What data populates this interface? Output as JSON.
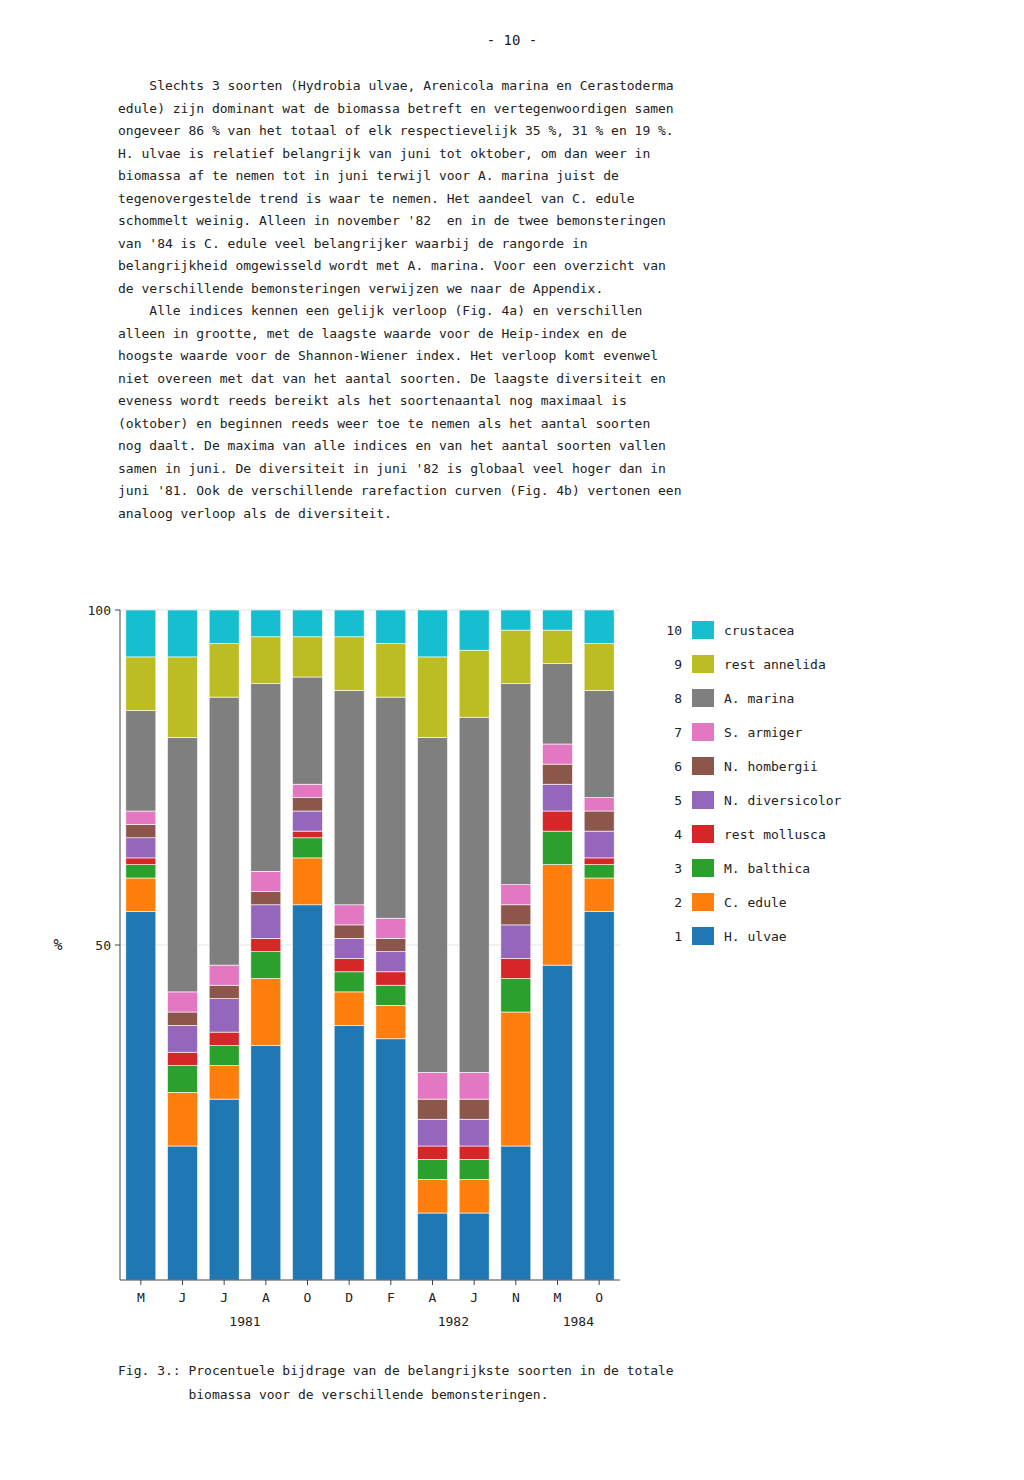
{
  "page_number": "- 10 -",
  "text_lines": [
    "    Slechts 3 soorten (Hydrobia ulvae, Arenicola marina en Cerastoderma",
    "edule) zijn dominant wat de biomassa betreft en vertegenwoordigen samen",
    "ongeveer 86 % van het totaal of elk respectievelijk 35 %, 31 % en 19 %.",
    "H. ulvae is relatief belangrijk van juni tot oktober, om dan weer in",
    "biomassa af te nemen tot in juni terwijl voor A. marina juist de",
    "tegenovergestelde trend is waar te nemen. Het aandeel van C. edule",
    "schommelt weinig. Alleen in november '82  en in de twee bemonsteringen",
    "van '84 is C. edule veel belangrijker waarbij de rangorde in",
    "belangrijkheid omgewisseld wordt met A. marina. Voor een overzicht van",
    "de verschillende bemonsteringen verwijzen we naar de Appendix.",
    "    Alle indices kennen een gelijk verloop (Fig. 4a) en verschillen",
    "alleen in grootte, met de laagste waarde voor de Heip-index en de",
    "hoogste waarde voor de Shannon-Wiener index. Het verloop komt evenwel",
    "niet overeen met dat van het aantal soorten. De laagste diversiteit en",
    "eveness wordt reeds bereikt als het soortenaantal nog maximaal is",
    "(oktober) en beginnen reeds weer toe te nemen als het aantal soorten",
    "nog daalt. De maxima van alle indices en van het aantal soorten vallen",
    "samen in juni. De diversiteit in juni '82 is globaal veel hoger dan in",
    "juni '81. Ook de verschillende rarefaction curven (Fig. 4b) vertonen een",
    "analoog verloop als de diversiteit."
  ],
  "caption": [
    "Fig. 3.: Procentuele bijdrage van de belangrijkste soorten in de totale",
    "         biomassa voor de verschillende bemonsteringen."
  ],
  "chart_data": {
    "type": "bar",
    "stacked": true,
    "legend": "right",
    "ylabel": "%",
    "categories": [
      "M",
      "J",
      "J",
      "A",
      "O",
      "D",
      "F",
      "A",
      "J",
      "N",
      "M",
      "O"
    ],
    "ylim": [
      0,
      100
    ],
    "yticks": [
      50,
      100
    ],
    "annotations": [
      {
        "text": "1981",
        "from": 0,
        "to": 5
      },
      {
        "text": "1982",
        "from": 6,
        "to": 9
      },
      {
        "text": "1984",
        "from": 10,
        "to": 11
      }
    ],
    "series": [
      {
        "name": "H. ulvae",
        "number": 1,
        "values": [
          55,
          20,
          27,
          35,
          56,
          38,
          36,
          10,
          10,
          20,
          47,
          55
        ]
      },
      {
        "name": "C. edule",
        "number": 2,
        "values": [
          5,
          8,
          5,
          10,
          7,
          5,
          5,
          5,
          5,
          20,
          15,
          5
        ]
      },
      {
        "name": "M. balthica",
        "number": 3,
        "values": [
          2,
          4,
          3,
          4,
          3,
          3,
          3,
          3,
          3,
          5,
          5,
          2
        ]
      },
      {
        "name": "rest mollusca",
        "number": 4,
        "values": [
          1,
          2,
          2,
          2,
          1,
          2,
          2,
          2,
          2,
          3,
          3,
          1
        ]
      },
      {
        "name": "N. diversicolor",
        "number": 5,
        "values": [
          3,
          4,
          5,
          5,
          3,
          3,
          3,
          4,
          4,
          5,
          4,
          4
        ]
      },
      {
        "name": "N. hombergii",
        "number": 6,
        "values": [
          2,
          2,
          2,
          2,
          2,
          2,
          2,
          3,
          3,
          3,
          3,
          3
        ]
      },
      {
        "name": "S. armiger",
        "number": 7,
        "values": [
          2,
          3,
          3,
          3,
          2,
          3,
          3,
          4,
          4,
          3,
          3,
          2
        ]
      },
      {
        "name": "A. marina",
        "number": 8,
        "values": [
          15,
          38,
          40,
          28,
          16,
          32,
          33,
          50,
          53,
          30,
          12,
          16
        ]
      },
      {
        "name": "rest annelida",
        "number": 9,
        "values": [
          8,
          12,
          8,
          7,
          6,
          8,
          8,
          12,
          10,
          8,
          5,
          7
        ]
      },
      {
        "name": "crustacea",
        "number": 10,
        "values": [
          7,
          7,
          5,
          4,
          4,
          4,
          5,
          7,
          6,
          3,
          3,
          5
        ]
      }
    ]
  }
}
